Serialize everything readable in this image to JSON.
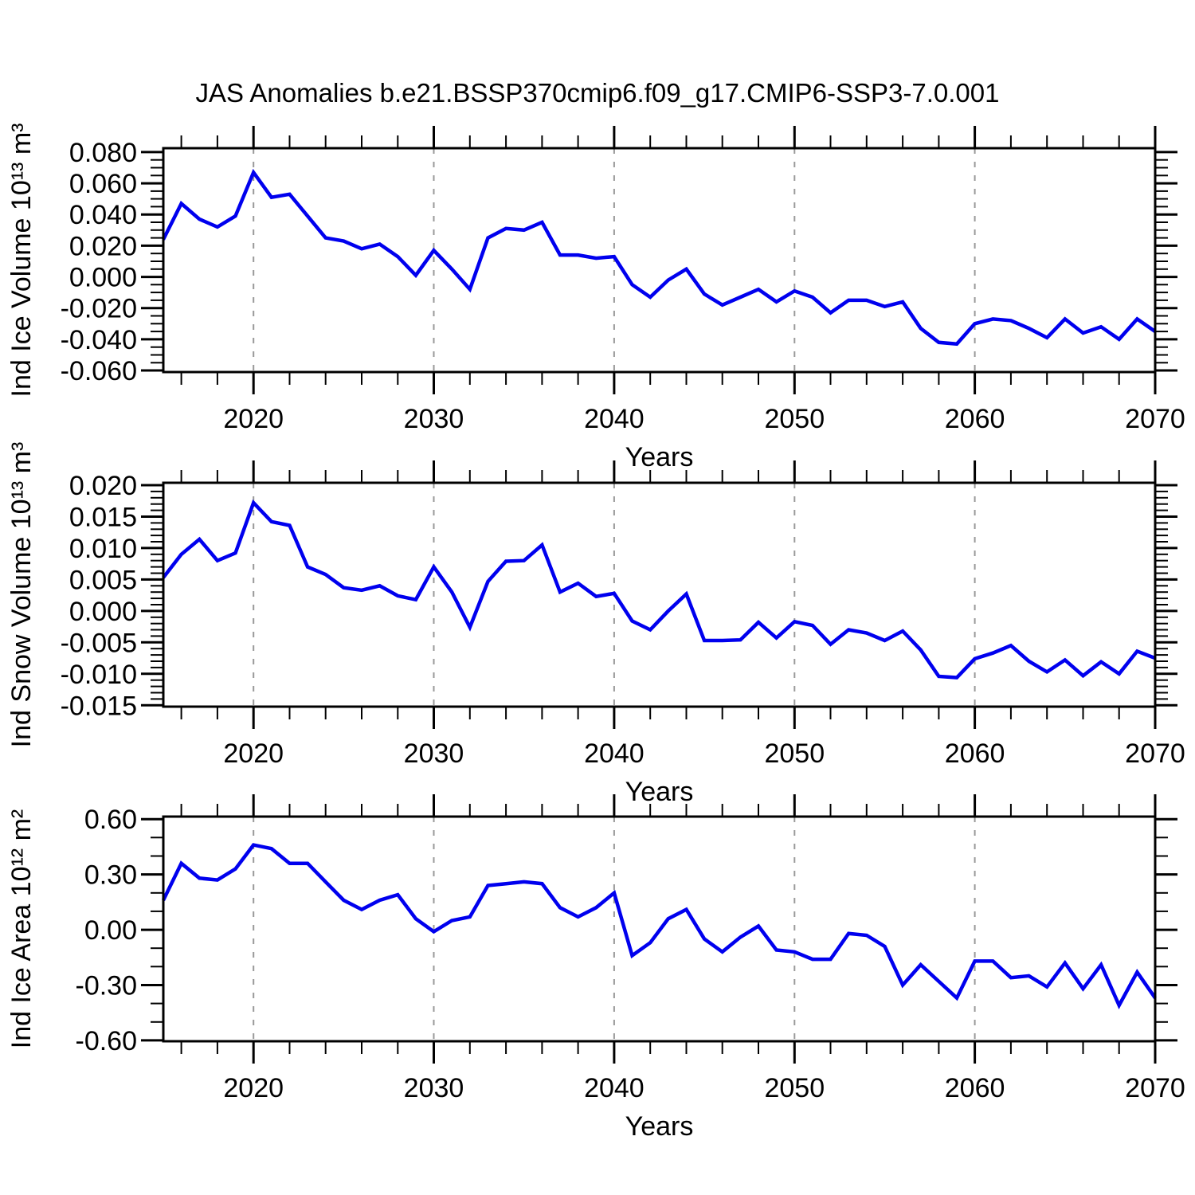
{
  "title": "JAS Anomalies b.e21.BSSP370cmip6.f09_g17.CMIP6-SSP3-7.0.001",
  "colors": {
    "line": "#0000EE",
    "grid": "#999999",
    "axis": "#000000",
    "background": "#FFFFFF"
  },
  "chart_data": [
    {
      "type": "line",
      "name": "ind-ice-volume",
      "ylabel": "Ind Ice Volume 10¹³ m³",
      "xlabel": "Years",
      "x_start": 2015,
      "x_end": 2070,
      "xlim": [
        2015,
        2070
      ],
      "xticks": [
        2020,
        2030,
        2040,
        2050,
        2060,
        2070
      ],
      "xtick_labels": [
        "2020",
        "2030",
        "2040",
        "2050",
        "2060",
        "2070"
      ],
      "x_minor_step": 2,
      "grid_x": [
        2020,
        2030,
        2040,
        2050,
        2060
      ],
      "ylim": [
        -0.061,
        0.0825
      ],
      "yticks": [
        0.08,
        0.06,
        0.04,
        0.02,
        0.0,
        -0.02,
        -0.04,
        -0.06
      ],
      "ytick_labels": [
        "0.080",
        "0.060",
        "0.040",
        "0.020",
        "0.000",
        "-0.020",
        "-0.040",
        "-0.060"
      ],
      "y_minor_step": 0.005,
      "grid_on": true,
      "legend": "none",
      "values": [
        0.024,
        0.047,
        0.037,
        0.032,
        0.039,
        0.067,
        0.051,
        0.053,
        0.039,
        0.025,
        0.023,
        0.018,
        0.021,
        0.013,
        0.001,
        0.017,
        0.005,
        -0.008,
        0.025,
        0.031,
        0.03,
        0.035,
        0.014,
        0.014,
        0.012,
        0.013,
        -0.005,
        -0.013,
        -0.002,
        0.005,
        -0.011,
        -0.018,
        -0.013,
        -0.008,
        -0.016,
        -0.009,
        -0.013,
        -0.023,
        -0.015,
        -0.015,
        -0.019,
        -0.016,
        -0.033,
        -0.042,
        -0.043,
        -0.03,
        -0.027,
        -0.028,
        -0.033,
        -0.039,
        -0.027,
        -0.036,
        -0.032,
        -0.04,
        -0.027,
        -0.035
      ]
    },
    {
      "type": "line",
      "name": "ind-snow-volume",
      "ylabel": "Ind Snow Volume 10¹³ m³",
      "xlabel": "Years",
      "x_start": 2015,
      "x_end": 2070,
      "xlim": [
        2015,
        2070
      ],
      "xticks": [
        2020,
        2030,
        2040,
        2050,
        2060,
        2070
      ],
      "xtick_labels": [
        "2020",
        "2030",
        "2040",
        "2050",
        "2060",
        "2070"
      ],
      "x_minor_step": 2,
      "grid_x": [
        2020,
        2030,
        2040,
        2050,
        2060
      ],
      "ylim": [
        -0.01522,
        0.02038
      ],
      "yticks": [
        0.02,
        0.015,
        0.01,
        0.005,
        0.0,
        -0.005,
        -0.01,
        -0.015
      ],
      "ytick_labels": [
        "0.020",
        "0.015",
        "0.010",
        "0.005",
        "0.000",
        "-0.005",
        "-0.010",
        "-0.015"
      ],
      "y_minor_step": 0.001,
      "grid_on": true,
      "legend": "none",
      "values": [
        0.0053,
        0.009,
        0.0114,
        0.008,
        0.0092,
        0.0172,
        0.0142,
        0.0136,
        0.007,
        0.0058,
        0.0037,
        0.0033,
        0.004,
        0.0024,
        0.0018,
        0.007,
        0.003,
        -0.0026,
        0.0047,
        0.0079,
        0.008,
        0.0105,
        0.003,
        0.0044,
        0.0023,
        0.0028,
        -0.0016,
        -0.003,
        0.0,
        0.0027,
        -0.0047,
        -0.0047,
        -0.0046,
        -0.0018,
        -0.0043,
        -0.0017,
        -0.0023,
        -0.0053,
        -0.003,
        -0.0035,
        -0.0047,
        -0.0032,
        -0.0062,
        -0.0104,
        -0.0106,
        -0.0076,
        -0.0067,
        -0.0055,
        -0.008,
        -0.0097,
        -0.0078,
        -0.0103,
        -0.0081,
        -0.01,
        -0.0064,
        -0.0075
      ]
    },
    {
      "type": "line",
      "name": "ind-ice-area",
      "ylabel": "Ind Ice Area 10¹² m²",
      "xlabel": "Years",
      "x_start": 2015,
      "x_end": 2070,
      "xlim": [
        2015,
        2070
      ],
      "xticks": [
        2020,
        2030,
        2040,
        2050,
        2060,
        2070
      ],
      "xtick_labels": [
        "2020",
        "2030",
        "2040",
        "2050",
        "2060",
        "2070"
      ],
      "x_minor_step": 2,
      "grid_x": [
        2020,
        2030,
        2040,
        2050,
        2060
      ],
      "ylim": [
        -0.6047,
        0.6138
      ],
      "yticks": [
        0.6,
        0.3,
        0.0,
        -0.3,
        -0.6
      ],
      "ytick_labels": [
        "0.60",
        "0.30",
        "0.00",
        "-0.30",
        "-0.60"
      ],
      "y_minor_step": 0.1,
      "grid_on": true,
      "legend": "none",
      "values": [
        0.16,
        0.36,
        0.28,
        0.27,
        0.33,
        0.46,
        0.44,
        0.36,
        0.36,
        0.26,
        0.16,
        0.11,
        0.16,
        0.19,
        0.06,
        -0.01,
        0.05,
        0.07,
        0.24,
        0.25,
        0.26,
        0.25,
        0.12,
        0.07,
        0.12,
        0.2,
        -0.14,
        -0.07,
        0.06,
        0.11,
        -0.05,
        -0.12,
        -0.04,
        0.02,
        -0.11,
        -0.12,
        -0.16,
        -0.16,
        -0.02,
        -0.03,
        -0.09,
        -0.3,
        -0.19,
        -0.28,
        -0.37,
        -0.17,
        -0.17,
        -0.26,
        -0.25,
        -0.31,
        -0.18,
        -0.32,
        -0.19,
        -0.41,
        -0.23,
        -0.37
      ]
    }
  ]
}
